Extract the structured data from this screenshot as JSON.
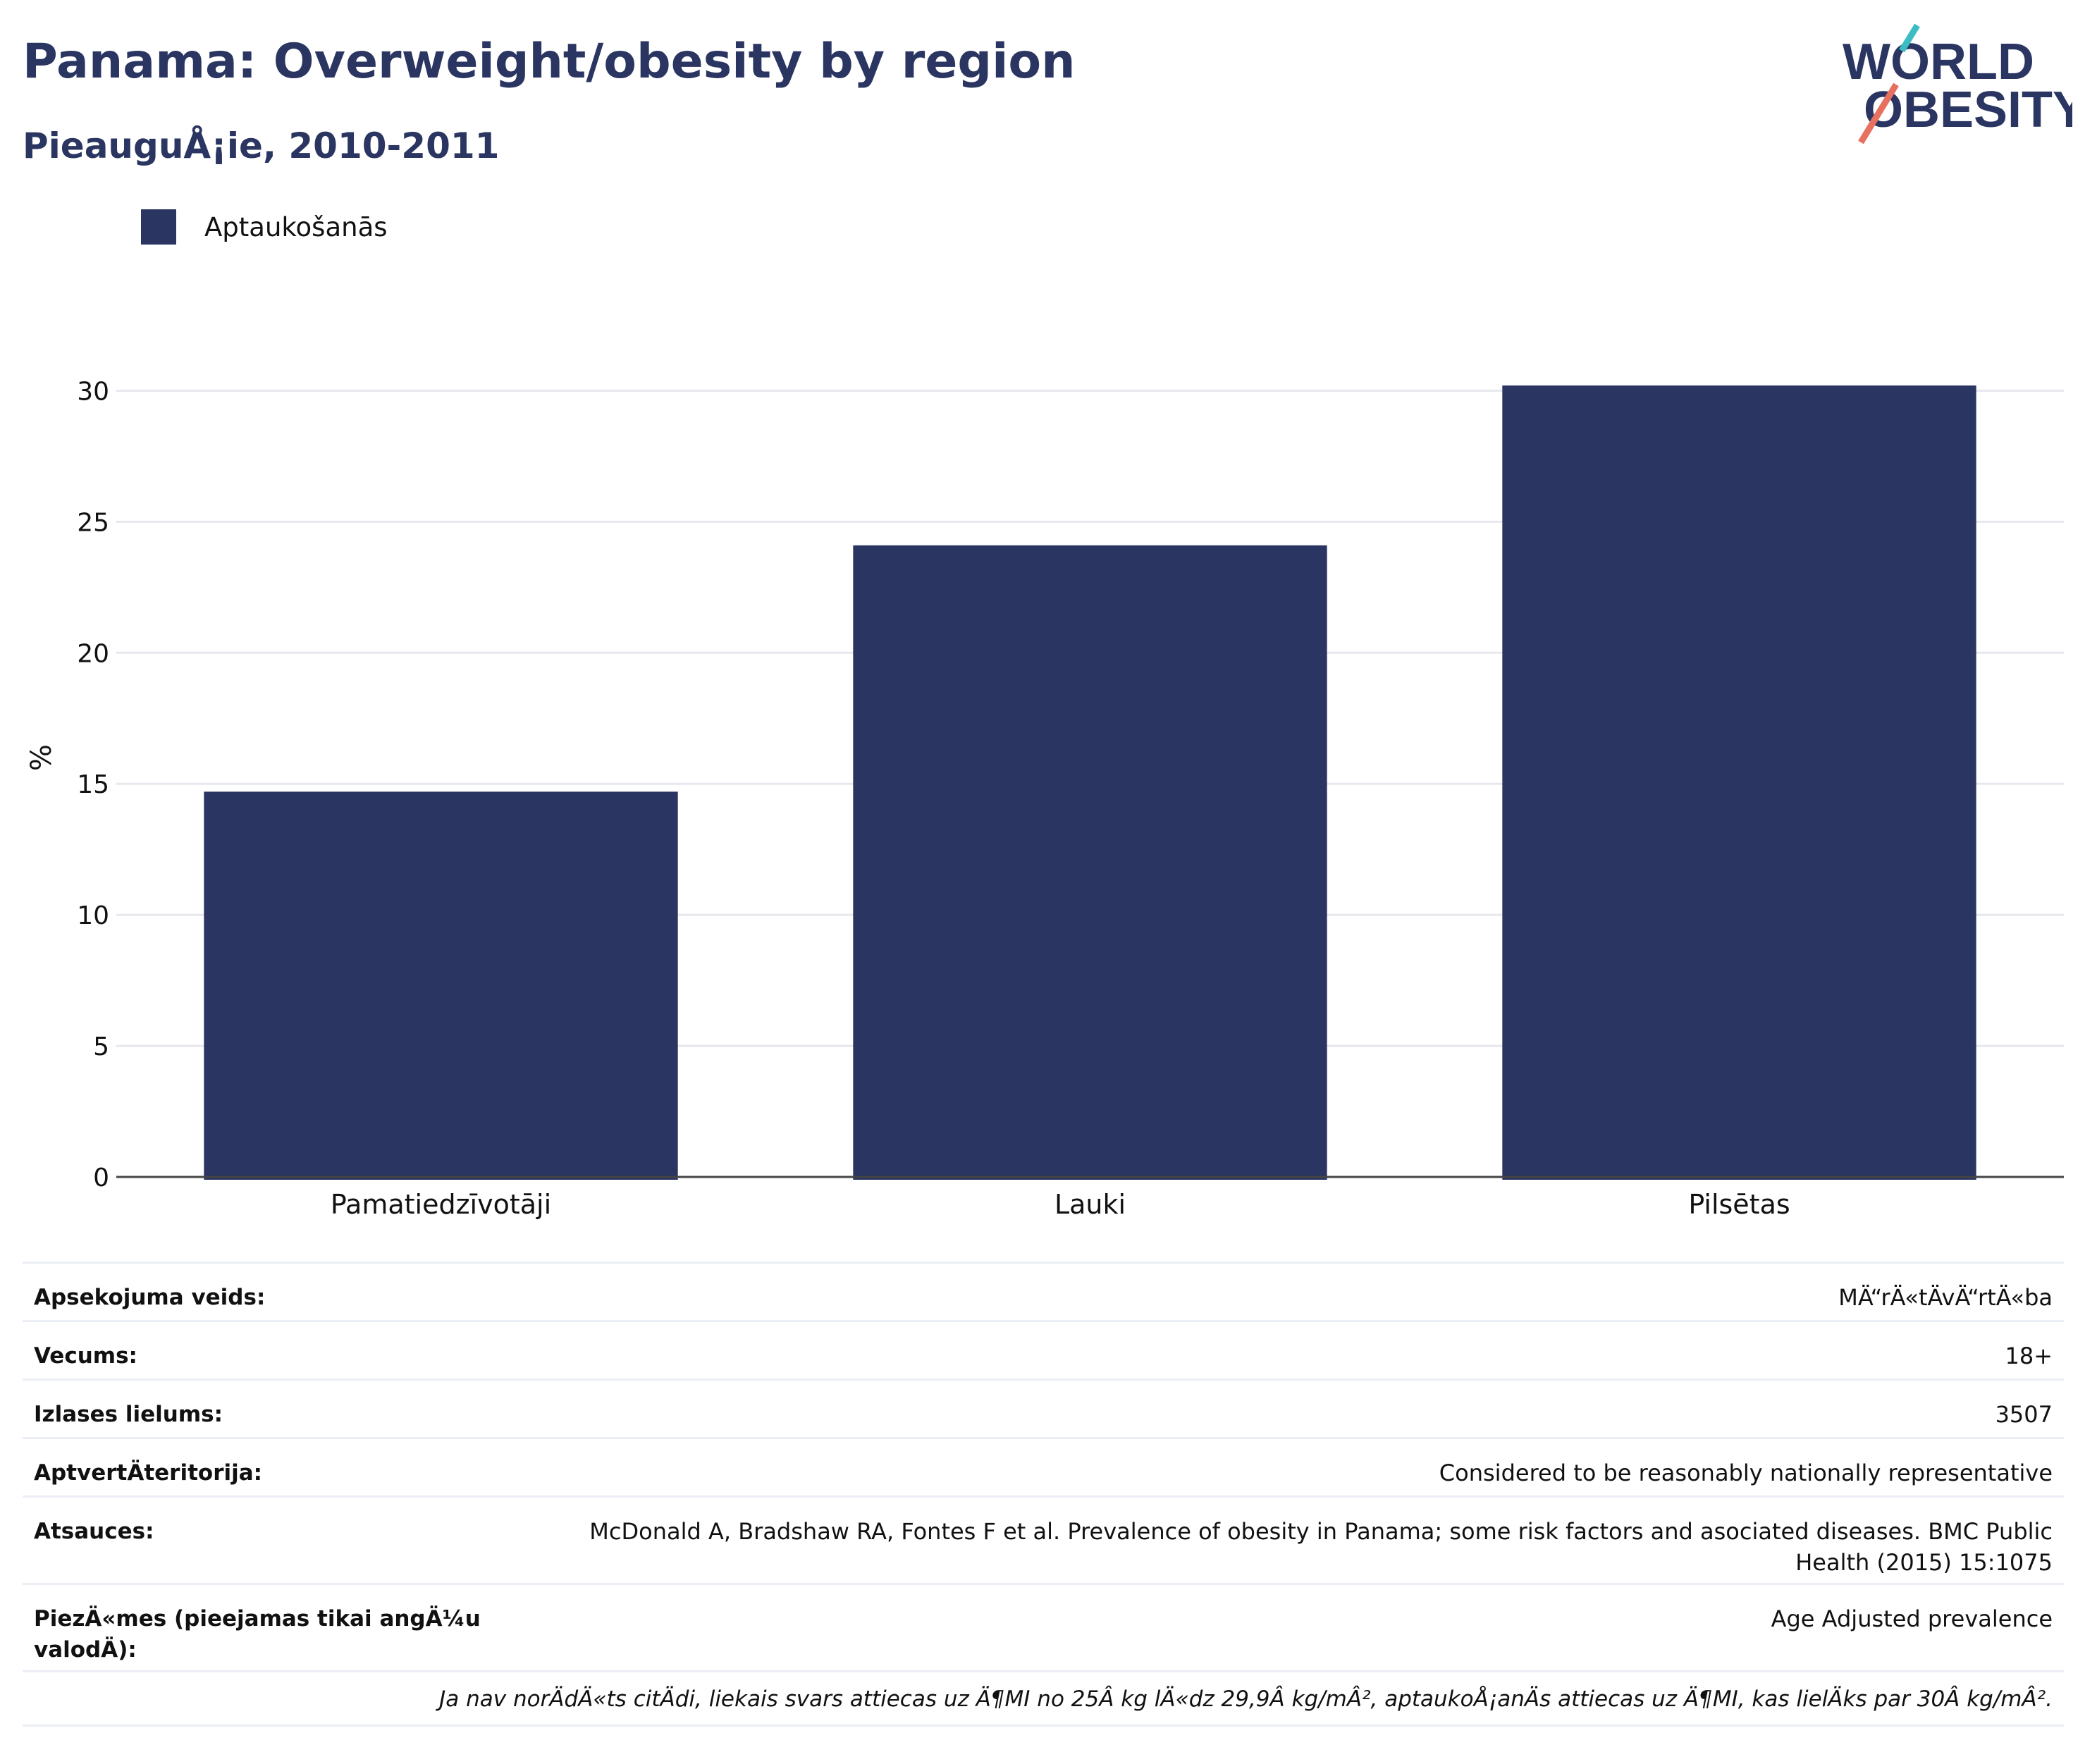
{
  "header": {
    "title": "Panama: Overweight/obesity by region",
    "subtitle": "PieauguÅ¡ie, 2010-2011"
  },
  "logo": {
    "line1": "WORLD",
    "line2": "OBESITY",
    "colors": {
      "text": "#2a3561",
      "slash_top": "#3bbdc3",
      "slash_bottom": "#e8705f"
    }
  },
  "legend": {
    "items": [
      {
        "label": "Aptaukošanās",
        "color": "#2a3561"
      }
    ]
  },
  "chart_data": {
    "type": "bar",
    "categories": [
      "Pamatiedzīvotāji",
      "Lauki",
      "Pilsētas"
    ],
    "series": [
      {
        "name": "Aptaukošanās",
        "values": [
          14.7,
          24.1,
          30.2
        ]
      }
    ],
    "ylabel": "%",
    "ylim": [
      0,
      32
    ],
    "yticks": [
      0,
      5,
      10,
      15,
      20,
      25,
      30
    ],
    "grid": true,
    "legend_position": "top-left",
    "bar_color": "#2a3561"
  },
  "info": {
    "rows": [
      {
        "label": "Apsekojuma veids:",
        "value": "MÄ“rÄ«tÄvÄ“rtÄ«ba"
      },
      {
        "label": "Vecums:",
        "value": "18+"
      },
      {
        "label": "Izlases lielums:",
        "value": "3507"
      },
      {
        "label": "AptvertÄteritorija:",
        "value": "Considered to be reasonably nationally representative"
      },
      {
        "label": "Atsauces:",
        "value": "McDonald A, Bradshaw RA, Fontes F et al. Prevalence of obesity in Panama; some risk factors and asociated diseases. BMC Public Health (2015) 15:1075"
      },
      {
        "label": "PiezÄ«mes (pieejamas tikai angÄ¼u valodÄ):",
        "value": "Age Adjusted prevalence"
      }
    ],
    "note": "Ja nav norÄdÄ«ts citÄdi, liekais svars attiecas uz Ä¶MI no 25Â kg lÄ«dz 29,9Â kg/mÂ², aptaukoÅ¡anÄs attiecas uz Ä¶MI, kas lielÄks par 30Â kg/mÂ²."
  }
}
